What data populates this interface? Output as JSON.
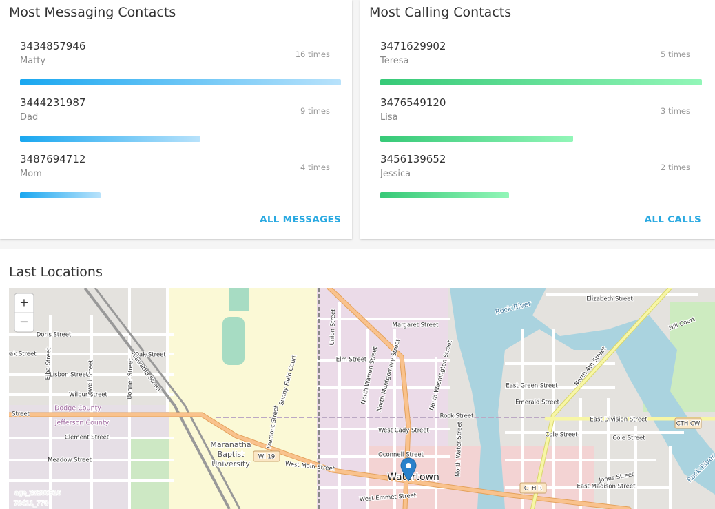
{
  "cards": [
    {
      "title": "Most Messaging Contacts",
      "action": "ALL MESSAGES",
      "contacts": [
        {
          "number": "3434857946",
          "name": "Matty",
          "count": {
            "value": 16,
            "label": "16 times"
          }
        },
        {
          "number": "3444231987",
          "name": "Dad",
          "count": {
            "value": 9,
            "label": "9 times"
          }
        },
        {
          "number": "3487694712",
          "name": "Mom",
          "count": {
            "value": 4,
            "label": "4 times"
          }
        }
      ]
    },
    {
      "title": "Most Calling Contacts",
      "action": "ALL CALLS",
      "contacts": [
        {
          "number": "3471629902",
          "name": "Teresa",
          "count": {
            "value": 5,
            "label": "5 times"
          }
        },
        {
          "number": "3476549120",
          "name": "Lisa",
          "count": {
            "value": 3,
            "label": "3 times"
          }
        },
        {
          "number": "3456139652",
          "name": "Jessica",
          "count": {
            "value": 2,
            "label": "2 times"
          }
        }
      ]
    }
  ],
  "locations": {
    "title": "Last Locations",
    "zoom": [
      "+",
      "−"
    ],
    "map_labels": [
      "Elizabeth Street",
      "Margaret Street",
      "Rock River",
      "Doris Street",
      "Oak Street",
      "Oak Street",
      "Elm Street",
      "Lisbon Street",
      "Wilbur Street",
      "Dodge County",
      "Jefferson County",
      "Clement Street",
      "Meadow Street",
      "East Green Street",
      "Emerald Street",
      "Rock Street",
      "East Division Street",
      "West Cady Street",
      "Cole Street",
      "Cole Street",
      "Maranatha",
      "Baptist",
      "University",
      "West Main Street",
      "Oconnell Street",
      "Watertown",
      "East Madison Street",
      "Jones Street",
      "West Emmet Street",
      "Hill Court",
      "North 4th Street",
      "North Water Street",
      "Union Street",
      "Fremont Street",
      "Sunny Field Court",
      "North Warren Street",
      "North Montgomery Street",
      "North Washington Street",
      "Hiawatha Street",
      "Lowell Street",
      "Bonner Street",
      "Elba Street",
      "Rock River",
      "Street",
      "age_20200916",
      "78411_770"
    ],
    "shields": [
      "WI 19",
      "CTH R",
      "CTH CW"
    ]
  }
}
